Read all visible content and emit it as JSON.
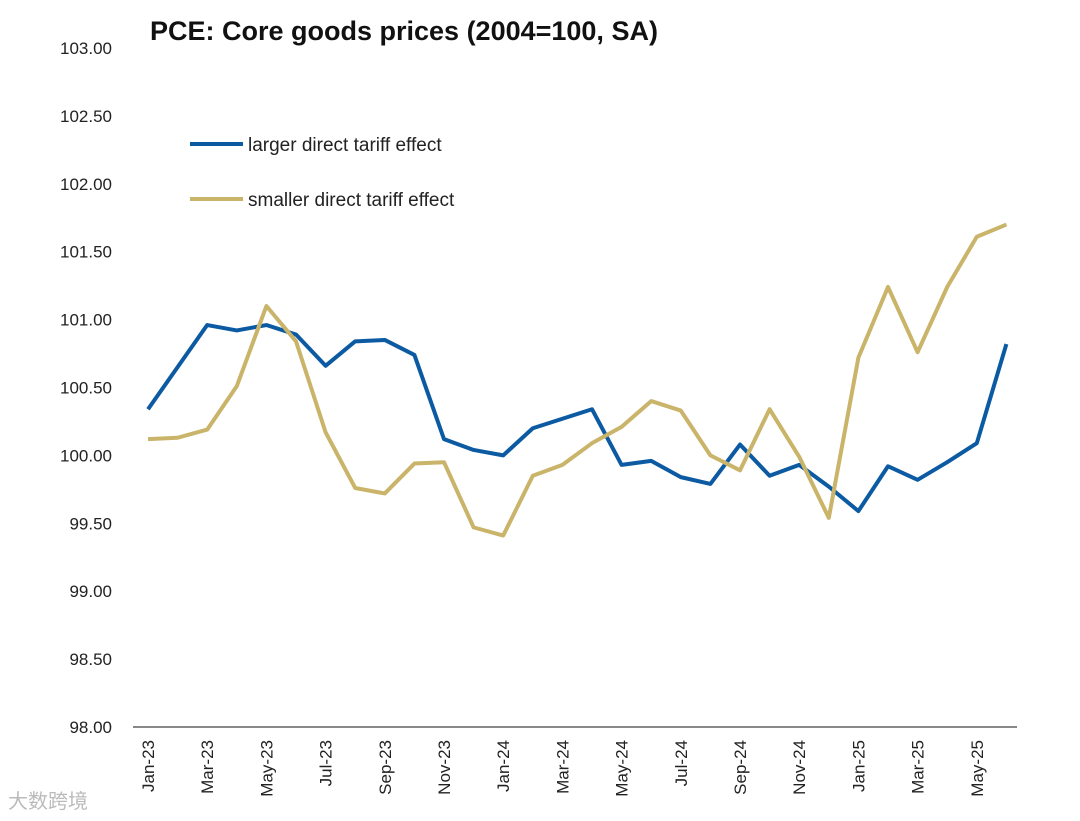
{
  "chart_data": {
    "type": "line",
    "title": "PCE: Core goods prices (2004=100, SA)",
    "xlabel": "",
    "ylabel": "",
    "ylim": [
      98,
      103
    ],
    "yticks": [
      "98.00",
      "98.50",
      "99.00",
      "99.50",
      "100.00",
      "100.50",
      "101.00",
      "101.50",
      "102.00",
      "102.50",
      "103.00"
    ],
    "x": [
      "Jan-23",
      "Feb-23",
      "Mar-23",
      "Apr-23",
      "May-23",
      "Jun-23",
      "Jul-23",
      "Aug-23",
      "Sep-23",
      "Oct-23",
      "Nov-23",
      "Dec-23",
      "Jan-24",
      "Feb-24",
      "Mar-24",
      "Apr-24",
      "May-24",
      "Jun-24",
      "Jul-24",
      "Aug-24",
      "Sep-24",
      "Oct-24",
      "Nov-24",
      "Dec-24",
      "Jan-25",
      "Feb-25",
      "Mar-25",
      "Apr-25",
      "May-25",
      "Jun-25"
    ],
    "xticks": [
      "Jan-23",
      "Mar-23",
      "May-23",
      "Jul-23",
      "Sep-23",
      "Nov-23",
      "Jan-24",
      "Mar-24",
      "May-24",
      "Jul-24",
      "Sep-24",
      "Nov-24",
      "Jan-25",
      "Mar-25",
      "May-25"
    ],
    "grid": false,
    "legend_position": "top-left",
    "series": [
      {
        "name": "larger direct tariff effect",
        "color": "#0B5AA2",
        "values": [
          100.34,
          100.65,
          100.96,
          100.92,
          100.96,
          100.89,
          100.66,
          100.84,
          100.85,
          100.74,
          100.12,
          100.04,
          100.0,
          100.2,
          100.27,
          100.34,
          99.93,
          99.96,
          99.84,
          99.79,
          100.08,
          99.85,
          99.93,
          99.77,
          99.59,
          99.92,
          99.82,
          99.95,
          100.09,
          100.82
        ]
      },
      {
        "name": "smaller direct tariff effect",
        "color": "#C9B46A",
        "values": [
          100.12,
          100.13,
          100.19,
          100.51,
          101.1,
          100.84,
          100.17,
          99.76,
          99.72,
          99.94,
          99.95,
          99.47,
          99.41,
          99.85,
          99.93,
          100.09,
          100.21,
          100.4,
          100.33,
          100.0,
          99.89,
          100.34,
          99.99,
          99.54,
          100.72,
          101.24,
          100.76,
          101.24,
          101.61,
          101.7
        ]
      }
    ]
  },
  "watermark": "大数跨境"
}
